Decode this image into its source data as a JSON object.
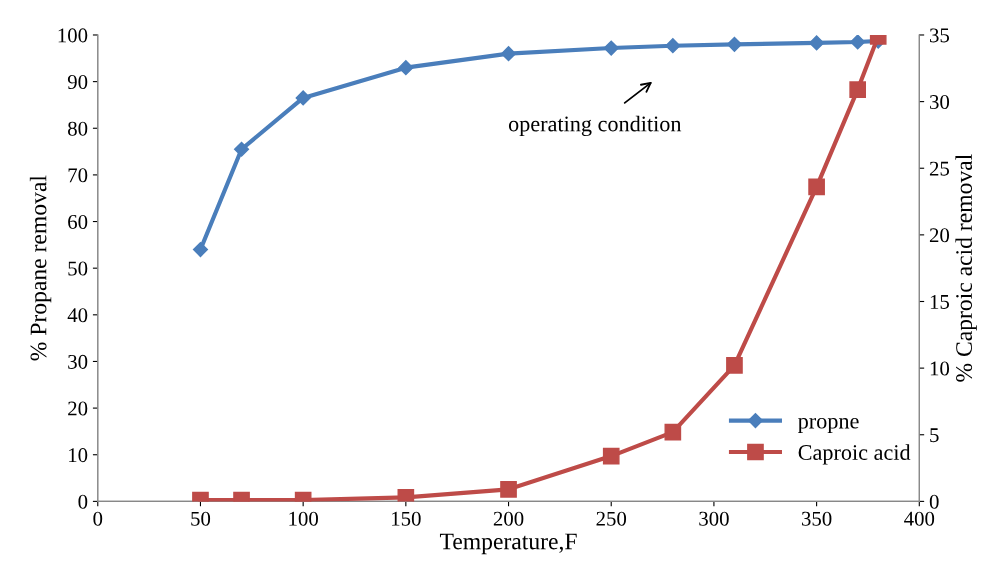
{
  "chart_data": {
    "type": "line",
    "xlabel": "Temperature,F",
    "ylabel": "% Propane removal",
    "y2label": "% Caproic acid removal",
    "x": [
      50,
      70,
      100,
      150,
      200,
      250,
      280,
      310,
      350,
      370,
      380
    ],
    "series": [
      {
        "name": "propne",
        "color": "#4a7ebb",
        "marker": "diamond",
        "values": [
          54,
          75.5,
          86.5,
          93,
          96,
          97.2,
          97.7,
          98,
          98.3,
          98.5,
          98.7
        ]
      },
      {
        "name": "Caproic acid",
        "color": "#be4b48",
        "marker": "square",
        "axis": "y2",
        "values": [
          0.1,
          0.1,
          0.1,
          0.3,
          0.9,
          3.4,
          5.2,
          10.2,
          23.6,
          30.9,
          34.9
        ]
      }
    ],
    "xlim": [
      0,
      400
    ],
    "xticks": [
      0,
      50,
      100,
      150,
      200,
      250,
      300,
      350,
      400
    ],
    "ylim": [
      0,
      100
    ],
    "yticks": [
      0,
      10,
      20,
      30,
      40,
      50,
      60,
      70,
      80,
      90,
      100
    ],
    "y2lim": [
      0,
      35
    ],
    "y2ticks": [
      0,
      5,
      10,
      15,
      20,
      25,
      30,
      35
    ],
    "annotations": [
      "operating condition"
    ],
    "grid": false,
    "legend": "bottom right"
  }
}
